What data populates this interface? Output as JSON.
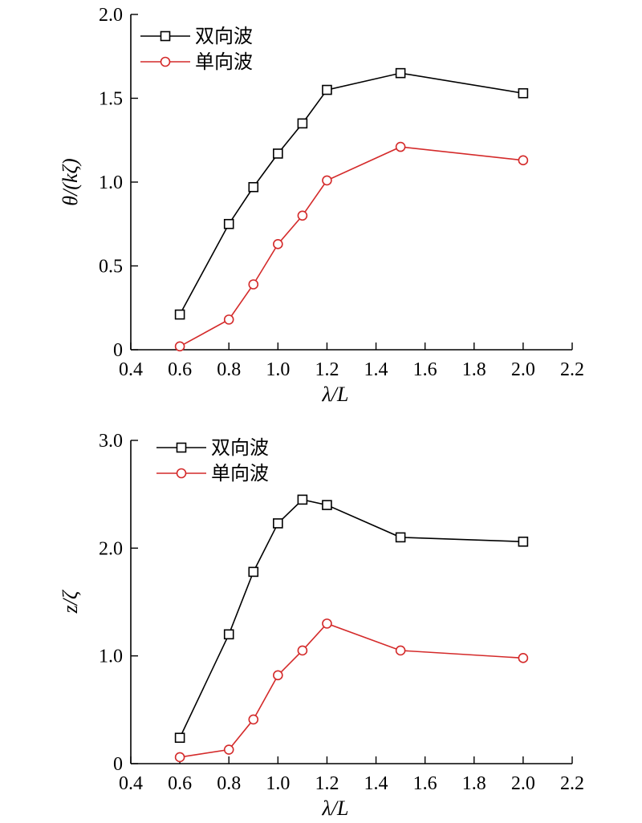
{
  "colors": {
    "series_a": "#000000",
    "series_b": "#d42a2a"
  },
  "chart_data": [
    {
      "type": "line",
      "title": "",
      "xlabel": "λ/L",
      "ylabel": "θ/(kζ)",
      "xlim": [
        0.4,
        2.2
      ],
      "ylim": [
        0,
        2.0
      ],
      "xticks": [
        "0.4",
        "0.6",
        "0.8",
        "1.0",
        "1.2",
        "1.4",
        "1.6",
        "1.8",
        "2.0",
        "2.2"
      ],
      "yticks": [
        "0",
        "0.5",
        "1.0",
        "1.5",
        "2.0"
      ],
      "grid": false,
      "legend_position": "top-left",
      "series": [
        {
          "name": "双向波",
          "marker": "square",
          "x": [
            0.6,
            0.8,
            0.9,
            1.0,
            1.1,
            1.2,
            1.5,
            2.0
          ],
          "y": [
            0.21,
            0.75,
            0.97,
            1.17,
            1.35,
            1.55,
            1.65,
            1.53
          ]
        },
        {
          "name": "单向波",
          "marker": "circle",
          "x": [
            0.6,
            0.8,
            0.9,
            1.0,
            1.1,
            1.2,
            1.5,
            2.0
          ],
          "y": [
            0.02,
            0.18,
            0.39,
            0.63,
            0.8,
            1.01,
            1.21,
            1.13
          ]
        }
      ]
    },
    {
      "type": "line",
      "title": "",
      "xlabel": "λ/L",
      "ylabel": "z/ζ",
      "xlim": [
        0.4,
        2.2
      ],
      "ylim": [
        0,
        3.0
      ],
      "xticks": [
        "0.4",
        "0.6",
        "0.8",
        "1.0",
        "1.2",
        "1.4",
        "1.6",
        "1.8",
        "2.0",
        "2.2"
      ],
      "yticks": [
        "0",
        "1.0",
        "2.0",
        "3.0"
      ],
      "grid": false,
      "legend_position": "top-left",
      "series": [
        {
          "name": "双向波",
          "marker": "square",
          "x": [
            0.6,
            0.8,
            0.9,
            1.0,
            1.1,
            1.2,
            1.5,
            2.0
          ],
          "y": [
            0.24,
            1.2,
            1.78,
            2.23,
            2.45,
            2.4,
            2.1,
            2.06
          ]
        },
        {
          "name": "单向波",
          "marker": "circle",
          "x": [
            0.6,
            0.8,
            0.9,
            1.0,
            1.1,
            1.2,
            1.5,
            2.0
          ],
          "y": [
            0.06,
            0.13,
            0.41,
            0.82,
            1.05,
            1.3,
            1.05,
            0.98
          ]
        }
      ]
    }
  ]
}
